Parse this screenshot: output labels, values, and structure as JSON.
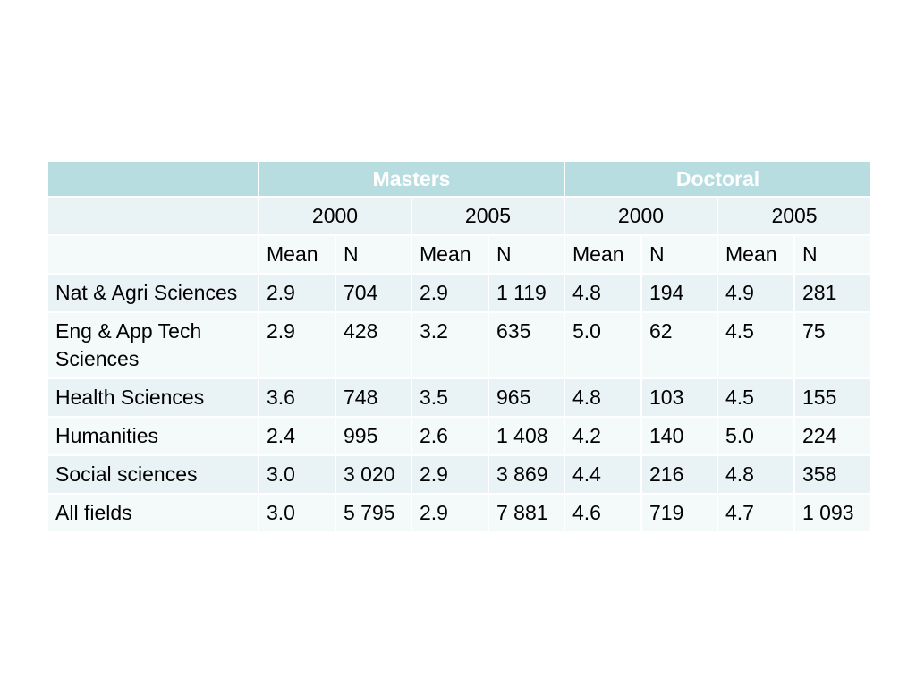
{
  "groups": [
    "Masters",
    "Doctoral"
  ],
  "years": [
    "2000",
    "2005",
    "2000",
    "2005"
  ],
  "subheaders": [
    "Mean",
    "N",
    "Mean",
    "N",
    "Mean",
    "N",
    "Mean",
    "N"
  ],
  "rows": [
    {
      "field": "Nat & Agri Sciences",
      "values": [
        "2.9",
        "704",
        "2.9",
        "1 119",
        "4.8",
        "194",
        "4.9",
        "281"
      ]
    },
    {
      "field": "Eng & App Tech Sciences",
      "values": [
        "2.9",
        "428",
        "3.2",
        "635",
        "5.0",
        "62",
        "4.5",
        "75"
      ]
    },
    {
      "field": "Health Sciences",
      "values": [
        "3.6",
        "748",
        "3.5",
        "965",
        "4.8",
        "103",
        "4.5",
        "155"
      ]
    },
    {
      "field": "Humanities",
      "values": [
        "2.4",
        "995",
        "2.6",
        "1 408",
        "4.2",
        "140",
        "5.0",
        "224"
      ]
    },
    {
      "field": "Social sciences",
      "values": [
        "3.0",
        "3 020",
        "2.9",
        "3 869",
        "4.4",
        "216",
        "4.8",
        "358"
      ]
    },
    {
      "field": "All fields",
      "values": [
        "3.0",
        "5 795",
        "2.9",
        "7 881",
        "4.6",
        "719",
        "4.7",
        "1 093"
      ]
    }
  ],
  "colors": {
    "header_fill": "#b7dde1",
    "band_odd": "#e9f3f5",
    "band_even": "#f4f9fa"
  }
}
